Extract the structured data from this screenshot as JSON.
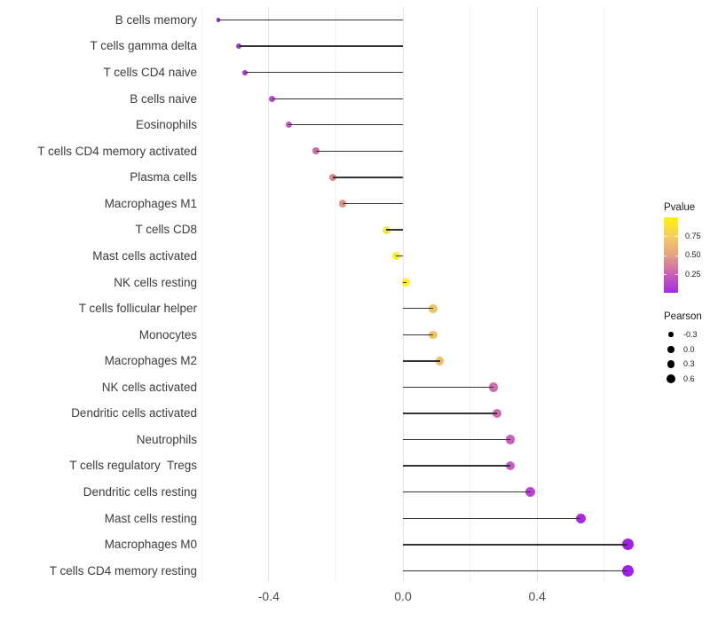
{
  "chart_data": {
    "type": "lollipop",
    "title": "",
    "xlabel": "",
    "ylabel": "",
    "x_ticks": [
      {
        "value": -0.4,
        "label": "-0.4"
      },
      {
        "value": 0.0,
        "label": "0.0"
      },
      {
        "value": 0.4,
        "label": "0.4"
      }
    ],
    "gridlines_major": [
      -0.4,
      0.0,
      0.4
    ],
    "gridlines_minor": [
      -0.6,
      -0.2,
      0.2,
      0.6
    ],
    "xlim": [
      -0.62,
      0.73
    ],
    "legend_note": "dot color = Pvalue, dot size = Pearson",
    "stem_color": "#333333",
    "points": [
      {
        "label": "B cells memory",
        "pearson": -0.55,
        "pvalue": 0.03,
        "color": "#9430d8",
        "radius": 2.2
      },
      {
        "label": "T cells gamma delta",
        "pearson": -0.49,
        "pvalue": 0.07,
        "color": "#a339d6",
        "radius": 3.0
      },
      {
        "label": "T cells CD4 naive",
        "pearson": -0.47,
        "pvalue": 0.08,
        "color": "#a83cd2",
        "radius": 3.1
      },
      {
        "label": "B cells naive",
        "pearson": -0.39,
        "pvalue": 0.13,
        "color": "#b846c9",
        "radius": 3.5
      },
      {
        "label": "Eosinophils",
        "pearson": -0.34,
        "pvalue": 0.19,
        "color": "#c254c0",
        "radius": 3.6
      },
      {
        "label": "T cells CD4 memory activated",
        "pearson": -0.26,
        "pvalue": 0.3,
        "color": "#cf6ba8",
        "radius": 4.0
      },
      {
        "label": "Plasma cells",
        "pearson": -0.21,
        "pvalue": 0.42,
        "color": "#d9868d",
        "radius": 4.1
      },
      {
        "label": "Macrophages M1",
        "pearson": -0.18,
        "pvalue": 0.48,
        "color": "#de9480",
        "radius": 4.2
      },
      {
        "label": "T cells CD8",
        "pearson": -0.05,
        "pvalue": 0.85,
        "color": "#f2e945",
        "radius": 4.5
      },
      {
        "label": "Mast cells activated",
        "pearson": -0.02,
        "pvalue": 0.92,
        "color": "#f9f128",
        "radius": 4.6
      },
      {
        "label": "NK cells resting",
        "pearson": 0.01,
        "pvalue": 0.96,
        "color": "#fdf704",
        "radius": 4.6
      },
      {
        "label": "T cells follicular helper",
        "pearson": 0.09,
        "pvalue": 0.68,
        "color": "#eec55d",
        "radius": 4.8
      },
      {
        "label": "Monocytes",
        "pearson": 0.09,
        "pvalue": 0.68,
        "color": "#eec45e",
        "radius": 4.8
      },
      {
        "label": "Macrophages M2",
        "pearson": 0.11,
        "pvalue": 0.66,
        "color": "#edc25f",
        "radius": 4.9
      },
      {
        "label": "NK cells activated",
        "pearson": 0.27,
        "pvalue": 0.31,
        "color": "#d16bae",
        "radius": 5.2
      },
      {
        "label": "Dendritic cells activated",
        "pearson": 0.28,
        "pvalue": 0.3,
        "color": "#d168af",
        "radius": 5.2
      },
      {
        "label": "Neutrophils",
        "pearson": 0.32,
        "pvalue": 0.22,
        "color": "#c75ec4",
        "radius": 5.3
      },
      {
        "label": "T cells regulatory  Tregs",
        "pearson": 0.32,
        "pvalue": 0.22,
        "color": "#c75dc5",
        "radius": 5.3
      },
      {
        "label": "Dendritic cells resting",
        "pearson": 0.38,
        "pvalue": 0.13,
        "color": "#bb40d4",
        "radius": 5.5
      },
      {
        "label": "Mast cells resting",
        "pearson": 0.53,
        "pvalue": 0.05,
        "color": "#ab27e2",
        "radius": 5.7
      },
      {
        "label": "Macrophages M0",
        "pearson": 0.67,
        "pvalue": 0.02,
        "color": "#a01fe9",
        "radius": 6.6
      },
      {
        "label": "T cells CD4 memory resting",
        "pearson": 0.67,
        "pvalue": 0.01,
        "color": "#a01fe9",
        "radius": 6.7
      }
    ]
  },
  "legends": {
    "pvalue": {
      "title": "Pvalue",
      "ticks": [
        "0.75",
        "0.50",
        "0.25"
      ],
      "gradient_stops": [
        "#fdf405",
        "#f4ce60",
        "#e3a27f",
        "#cc5fb4",
        "#a22ce8"
      ]
    },
    "pearson": {
      "title": "Pearson",
      "dot_color": "#000000",
      "items": [
        {
          "label": "-0.3",
          "radius": 2.7
        },
        {
          "label": "0.0",
          "radius": 3.7
        },
        {
          "label": "0.3",
          "radius": 4.4
        },
        {
          "label": "0.6",
          "radius": 5.0
        }
      ]
    }
  }
}
